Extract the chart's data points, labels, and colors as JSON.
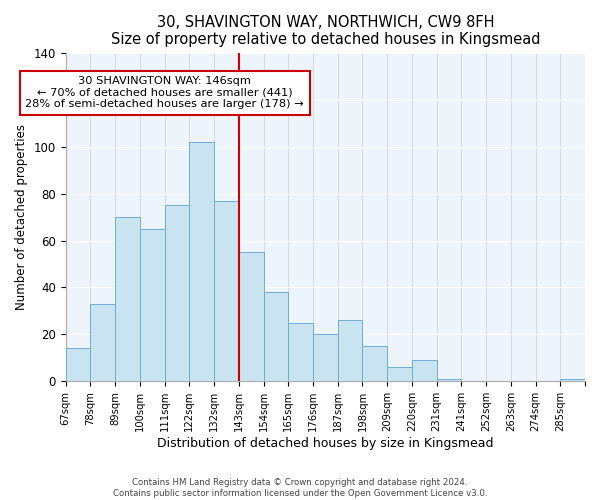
{
  "title": "30, SHAVINGTON WAY, NORTHWICH, CW9 8FH",
  "subtitle": "Size of property relative to detached houses in Kingsmead",
  "xlabel": "Distribution of detached houses by size in Kingsmead",
  "ylabel": "Number of detached properties",
  "footer_line1": "Contains HM Land Registry data © Crown copyright and database right 2024.",
  "footer_line2": "Contains public sector information licensed under the Open Government Licence v3.0.",
  "bin_labels": [
    "67sqm",
    "78sqm",
    "89sqm",
    "100sqm",
    "111sqm",
    "122sqm",
    "132sqm",
    "143sqm",
    "154sqm",
    "165sqm",
    "176sqm",
    "187sqm",
    "198sqm",
    "209sqm",
    "220sqm",
    "231sqm",
    "241sqm",
    "252sqm",
    "263sqm",
    "274sqm",
    "285sqm"
  ],
  "bar_heights": [
    14,
    33,
    70,
    65,
    75,
    102,
    77,
    55,
    38,
    25,
    20,
    26,
    15,
    6,
    9,
    1,
    0,
    0,
    0,
    0,
    1
  ],
  "bar_color": "#c9e4f0",
  "bar_edge_color": "#6aaed6",
  "vline_color": "#cc0000",
  "annotation_title": "30 SHAVINGTON WAY: 146sqm",
  "annotation_line1": "← 70% of detached houses are smaller (441)",
  "annotation_line2": "28% of semi-detached houses are larger (178) →",
  "annotation_box_edge_color": "#cc0000",
  "plot_bg_color": "#eef4fb",
  "ylim": [
    0,
    140
  ],
  "yticks": [
    0,
    20,
    40,
    60,
    80,
    100,
    120,
    140
  ]
}
